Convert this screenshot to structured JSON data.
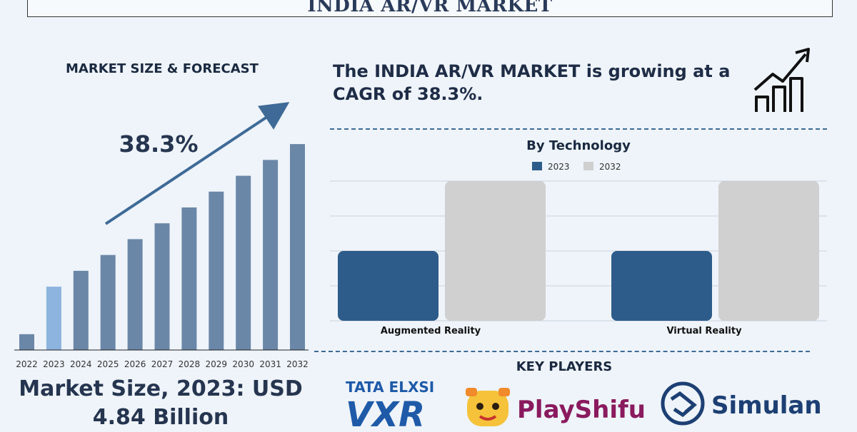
{
  "header": {
    "title": "INDIA AR/VR MARKET"
  },
  "left_panel": {
    "heading": "MARKET SIZE & FORECAST",
    "cagr_label": "38.3%",
    "market_size_line1": "Market Size, 2023: USD",
    "market_size_line2": "4.84 Billion"
  },
  "right_panel": {
    "growth_text_line1": "The INDIA AR/VR MARKET is growing at a",
    "growth_text_line2": "CAGR of 38.3%.",
    "growth_icon": "growth-chart-icon",
    "key_players_heading": "KEY PLAYERS",
    "key_players": [
      {
        "name": "TATA ELXSI",
        "sub": "VXR",
        "icon": "tata-elxsi-vxr-logo"
      },
      {
        "name": "PlayShifu",
        "icon": "playshifu-logo"
      },
      {
        "name": "Simulanis",
        "icon": "simulanis-logo"
      }
    ]
  },
  "colors": {
    "bar_dark": "#2e5c8a",
    "bar_main": "#6b87a8",
    "bar_light": "#8db4de",
    "series_2023": "#2e5c8a",
    "series_2032": "#d0d0d0",
    "accent": "#3f6a97"
  },
  "chart_data": [
    {
      "type": "bar",
      "title": "",
      "categories": [
        "2022",
        "2023",
        "2024",
        "2025",
        "2026",
        "2027",
        "2028",
        "2029",
        "2030",
        "2031",
        "2032"
      ],
      "values": [
        1,
        4,
        5,
        6,
        7,
        8,
        9,
        10,
        11,
        12,
        13
      ],
      "xlabel": "",
      "ylabel": "",
      "ylim": [
        0,
        13.5
      ],
      "grid": false,
      "annotation": "38.3%"
    },
    {
      "type": "bar",
      "title": "By Technology",
      "categories": [
        "Augmented Reality",
        "Virtual Reality"
      ],
      "series": [
        {
          "name": "2023",
          "values": [
            2,
            2
          ]
        },
        {
          "name": "2032",
          "values": [
            4,
            4
          ]
        }
      ],
      "ylim": [
        0,
        4
      ],
      "grid": true,
      "legend": "top-center"
    }
  ]
}
